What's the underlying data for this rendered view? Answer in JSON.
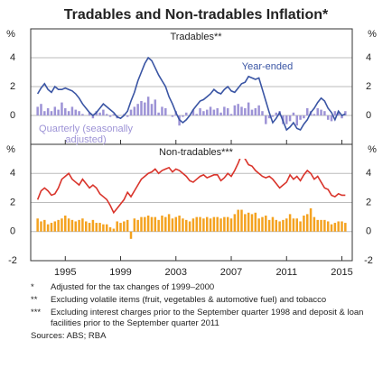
{
  "title": "Tradables and Non-tradables Inflation*",
  "chart_data": [
    {
      "type": "combo",
      "title": "Tradables**",
      "y_unit": "%",
      "x": [
        1993,
        1993.25,
        1993.5,
        1993.75,
        1994,
        1994.25,
        1994.5,
        1994.75,
        1995,
        1995.25,
        1995.5,
        1995.75,
        1996,
        1996.25,
        1996.5,
        1996.75,
        1997,
        1997.25,
        1997.5,
        1997.75,
        1998,
        1998.25,
        1998.5,
        1998.75,
        1999,
        1999.25,
        1999.5,
        1999.75,
        2000,
        2000.25,
        2000.5,
        2000.75,
        2001,
        2001.25,
        2001.5,
        2001.75,
        2002,
        2002.25,
        2002.5,
        2002.75,
        2003,
        2003.25,
        2003.5,
        2003.75,
        2004,
        2004.25,
        2004.5,
        2004.75,
        2005,
        2005.25,
        2005.5,
        2005.75,
        2006,
        2006.25,
        2006.5,
        2006.75,
        2007,
        2007.25,
        2007.5,
        2007.75,
        2008,
        2008.25,
        2008.5,
        2008.75,
        2009,
        2009.25,
        2009.5,
        2009.75,
        2010,
        2010.25,
        2010.5,
        2010.75,
        2011,
        2011.25,
        2011.5,
        2011.75,
        2012,
        2012.25,
        2012.5,
        2012.75,
        2013,
        2013.25,
        2013.5,
        2013.75,
        2014,
        2014.25,
        2014.5,
        2014.75,
        2015,
        2015.25
      ],
      "xlim": [
        1992.5,
        2015.75
      ],
      "xticks": [
        1995,
        1999,
        2003,
        2007,
        2011,
        2015
      ],
      "ylim": [
        -2,
        6
      ],
      "yticks": [
        0,
        2,
        4
      ],
      "grid": true,
      "series": [
        {
          "name": "Year-ended",
          "type": "line",
          "color": "#3a55a4",
          "values": [
            1.5,
            1.9,
            2.2,
            1.8,
            1.6,
            2.0,
            1.8,
            1.8,
            1.9,
            1.8,
            1.7,
            1.5,
            1.2,
            0.8,
            0.5,
            0.2,
            0.0,
            0.2,
            0.5,
            0.8,
            0.6,
            0.4,
            0.2,
            -0.1,
            -0.2,
            0.0,
            0.3,
            1.0,
            1.6,
            2.4,
            3.0,
            3.6,
            4.0,
            3.8,
            3.3,
            2.8,
            2.4,
            2.0,
            1.3,
            0.8,
            0.2,
            -0.3,
            -0.5,
            -0.3,
            0.0,
            0.4,
            0.7,
            1.0,
            1.1,
            1.3,
            1.5,
            1.8,
            1.6,
            1.5,
            1.8,
            2.0,
            1.7,
            1.6,
            1.9,
            2.2,
            2.3,
            2.7,
            2.6,
            2.5,
            2.6,
            1.8,
            1.0,
            0.2,
            -0.5,
            -0.2,
            0.2,
            -0.4,
            -1.0,
            -0.8,
            -0.5,
            -0.9,
            -1.0,
            -0.6,
            -0.3,
            0.2,
            0.5,
            0.9,
            1.2,
            1.0,
            0.5,
            0.2,
            -0.3,
            0.3,
            0.0,
            0.1
          ]
        },
        {
          "name": "Quarterly (seasonally adjusted)",
          "type": "bar",
          "color": "#9d93d6",
          "values": [
            0.6,
            0.8,
            0.3,
            0.5,
            0.3,
            0.6,
            0.4,
            0.9,
            0.5,
            0.3,
            0.6,
            0.4,
            0.3,
            0.1,
            0.0,
            0.2,
            -0.2,
            0.3,
            0.2,
            0.4,
            0.1,
            -0.1,
            0.1,
            -0.2,
            0.0,
            0.1,
            -0.1,
            0.4,
            0.6,
            0.8,
            1.0,
            0.9,
            1.3,
            0.8,
            1.1,
            0.2,
            0.6,
            0.5,
            0.0,
            -0.1,
            0.3,
            -0.7,
            -0.1,
            0.2,
            0.0,
            0.4,
            0.1,
            0.5,
            0.3,
            0.4,
            0.6,
            0.4,
            0.5,
            0.2,
            0.6,
            0.5,
            0.1,
            0.7,
            0.8,
            0.6,
            0.5,
            0.9,
            0.4,
            0.5,
            0.7,
            0.3,
            -0.6,
            -0.2,
            -0.1,
            0.2,
            0.3,
            -0.6,
            -0.6,
            -0.4,
            0.2,
            -0.7,
            -0.3,
            -0.2,
            0.5,
            0.3,
            0.1,
            0.5,
            0.4,
            0.3,
            -0.3,
            -0.4,
            0.3,
            0.2,
            -0.2,
            0.3
          ]
        }
      ]
    },
    {
      "type": "combo",
      "title": "Non-tradables***",
      "y_unit": "%",
      "x": [
        1993,
        1993.25,
        1993.5,
        1993.75,
        1994,
        1994.25,
        1994.5,
        1994.75,
        1995,
        1995.25,
        1995.5,
        1995.75,
        1996,
        1996.25,
        1996.5,
        1996.75,
        1997,
        1997.25,
        1997.5,
        1997.75,
        1998,
        1998.25,
        1998.5,
        1998.75,
        1999,
        1999.25,
        1999.5,
        1999.75,
        2000,
        2000.25,
        2000.5,
        2000.75,
        2001,
        2001.25,
        2001.5,
        2001.75,
        2002,
        2002.25,
        2002.5,
        2002.75,
        2003,
        2003.25,
        2003.5,
        2003.75,
        2004,
        2004.25,
        2004.5,
        2004.75,
        2005,
        2005.25,
        2005.5,
        2005.75,
        2006,
        2006.25,
        2006.5,
        2006.75,
        2007,
        2007.25,
        2007.5,
        2007.75,
        2008,
        2008.25,
        2008.5,
        2008.75,
        2009,
        2009.25,
        2009.5,
        2009.75,
        2010,
        2010.25,
        2010.5,
        2010.75,
        2011,
        2011.25,
        2011.5,
        2011.75,
        2012,
        2012.25,
        2012.5,
        2012.75,
        2013,
        2013.25,
        2013.5,
        2013.75,
        2014,
        2014.25,
        2014.5,
        2014.75,
        2015,
        2015.25
      ],
      "xlim": [
        1992.5,
        2015.75
      ],
      "xticks": [
        1995,
        1999,
        2003,
        2007,
        2011,
        2015
      ],
      "ylim": [
        -2,
        6
      ],
      "yticks": [
        -2,
        0,
        2,
        4
      ],
      "grid": true,
      "series": [
        {
          "type": "line",
          "color": "#d9342b",
          "values": [
            2.2,
            2.8,
            3.0,
            2.8,
            2.5,
            2.6,
            3.0,
            3.6,
            3.8,
            4.0,
            3.6,
            3.4,
            3.2,
            3.6,
            3.3,
            3.0,
            3.2,
            3.0,
            2.6,
            2.4,
            2.2,
            1.8,
            1.3,
            1.6,
            1.9,
            2.2,
            2.7,
            2.4,
            2.8,
            3.2,
            3.6,
            3.8,
            4.0,
            4.1,
            4.3,
            4.0,
            4.2,
            4.3,
            4.4,
            4.1,
            4.3,
            4.2,
            4.0,
            3.8,
            3.5,
            3.4,
            3.6,
            3.8,
            3.9,
            3.7,
            3.8,
            3.9,
            3.9,
            3.5,
            3.7,
            4.0,
            3.8,
            4.2,
            4.7,
            5.3,
            5.0,
            4.6,
            4.5,
            4.2,
            4.0,
            3.8,
            3.7,
            3.8,
            3.6,
            3.3,
            3.0,
            3.2,
            3.4,
            3.9,
            3.6,
            3.8,
            3.5,
            3.9,
            4.2,
            4.0,
            3.6,
            3.8,
            3.4,
            3.0,
            2.9,
            2.5,
            2.4,
            2.6,
            2.5,
            2.5
          ]
        },
        {
          "type": "bar",
          "color": "#f4a21f",
          "values": [
            0.9,
            0.7,
            0.8,
            0.5,
            0.6,
            0.7,
            0.8,
            0.9,
            1.1,
            0.9,
            0.8,
            0.7,
            0.8,
            0.9,
            0.7,
            0.6,
            0.8,
            0.6,
            0.6,
            0.5,
            0.5,
            0.3,
            0.2,
            0.7,
            0.6,
            0.7,
            0.8,
            -0.5,
            0.9,
            0.8,
            1.0,
            1.0,
            1.1,
            1.0,
            1.0,
            0.8,
            1.1,
            1.0,
            1.2,
            0.9,
            1.0,
            1.1,
            0.9,
            0.8,
            0.7,
            0.9,
            1.0,
            1.0,
            0.9,
            1.0,
            0.9,
            1.0,
            1.0,
            0.9,
            1.0,
            1.0,
            0.9,
            1.2,
            1.5,
            1.5,
            1.2,
            1.3,
            1.2,
            1.3,
            0.9,
            1.0,
            1.1,
            0.8,
            1.0,
            0.8,
            0.7,
            0.8,
            0.9,
            1.2,
            0.9,
            0.9,
            0.7,
            1.1,
            1.2,
            1.6,
            1.0,
            0.8,
            0.8,
            0.8,
            0.7,
            0.5,
            0.6,
            0.7,
            0.7,
            0.6
          ]
        }
      ]
    }
  ],
  "notes": [
    {
      "marker": "*",
      "text": "Adjusted for the tax changes of 1999–2000"
    },
    {
      "marker": "**",
      "text": "Excluding volatile items (fruit, vegetables & automotive fuel) and tobacco"
    },
    {
      "marker": "***",
      "text": "Excluding interest charges prior to the September quarter 1998 and deposit & loan facilities prior to the September quarter 2011"
    }
  ],
  "sources": "Sources:  ABS; RBA"
}
